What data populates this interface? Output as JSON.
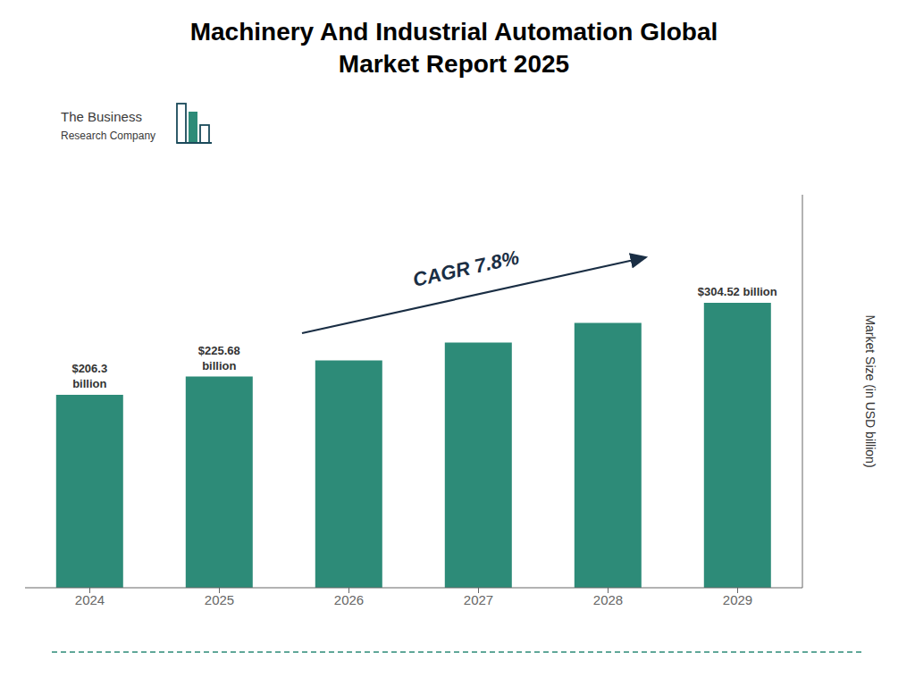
{
  "chart_data": {
    "type": "bar",
    "title": "Machinery And Industrial Automation Global\nMarket Report 2025",
    "ylabel": "Market Size (in USD billion)",
    "categories": [
      "2024",
      "2025",
      "2026",
      "2027",
      "2028",
      "2029"
    ],
    "values": [
      206.3,
      225.68,
      243.0,
      262.0,
      283.0,
      304.52
    ],
    "value_labels": [
      "$206.3\nbillion",
      "$225.68\nbillion",
      null,
      null,
      null,
      "$304.52 billion"
    ],
    "color": "#2d8b78",
    "ylim": [
      0,
      420
    ],
    "grid": false,
    "tick_labels": "x",
    "annotations": [
      "CAGR 7.8%",
      "The Business",
      "Research Company"
    ]
  }
}
